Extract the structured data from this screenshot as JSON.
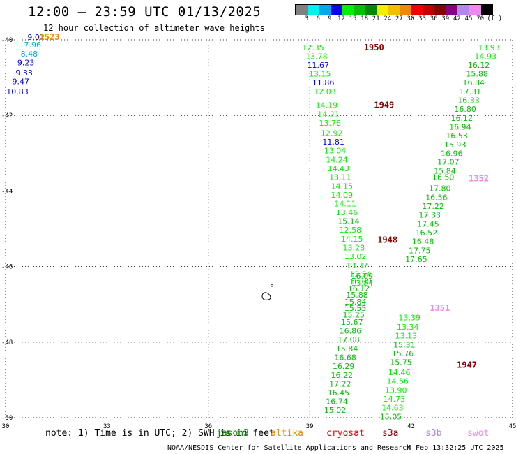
{
  "header": {
    "title": "12:00 — 23:59 UTC 01/13/2025",
    "subtitle": "12 hour collection of altimeter wave heights"
  },
  "legend": {
    "unit": "(ft)",
    "colors": [
      "#808080",
      "#00f0f0",
      "#00a8f0",
      "#0000f0",
      "#00f000",
      "#00c000",
      "#008800",
      "#f0f000",
      "#f0c000",
      "#f08800",
      "#f00000",
      "#c00000",
      "#880000",
      "#880088",
      "#b088f0",
      "#f088f0",
      "#000000"
    ],
    "labels": [
      "3",
      "6",
      "9",
      "12",
      "15",
      "18",
      "21",
      "24",
      "27",
      "30",
      "33",
      "36",
      "39",
      "42",
      "45",
      "70"
    ]
  },
  "axes": {
    "x_ticks": [
      "30",
      "33",
      "36",
      "39",
      "42",
      "45"
    ],
    "y_ticks": [
      "-40",
      "-42",
      "-44",
      "-46",
      "-48",
      "-50"
    ],
    "x_range": [
      30,
      45
    ],
    "y_range": [
      -40,
      -50
    ]
  },
  "tracks": [
    {
      "id": "1523",
      "label_color": "#f08800",
      "label_lon": 31.3,
      "label_lat": -39.93,
      "values": [
        {
          "v": "9.02",
          "lon": 30.9,
          "lat": -39.93,
          "c": "#0000f0"
        },
        {
          "v": "7.96",
          "lon": 30.8,
          "lat": -40.13,
          "c": "#00a8f0"
        },
        {
          "v": "8.48",
          "lon": 30.7,
          "lat": -40.37,
          "c": "#00a8f0"
        },
        {
          "v": "9.23",
          "lon": 30.6,
          "lat": -40.6,
          "c": "#0000f0"
        },
        {
          "v": "9.33",
          "lon": 30.55,
          "lat": -40.87,
          "c": "#0000f0"
        },
        {
          "v": "9.47",
          "lon": 30.45,
          "lat": -41.1,
          "c": "#0000f0"
        },
        {
          "v": "10.83",
          "lon": 30.35,
          "lat": -41.37,
          "c": "#0000f0"
        }
      ]
    },
    {
      "id": "1950",
      "label_color": "#880000",
      "label_lon": 40.9,
      "label_lat": -40.2,
      "values": [
        {
          "v": "12.35",
          "lon": 39.1,
          "lat": -40.2,
          "c": "#00f000"
        },
        {
          "v": "13.78",
          "lon": 39.2,
          "lat": -40.43,
          "c": "#00f000"
        },
        {
          "v": "11.67",
          "lon": 39.25,
          "lat": -40.67,
          "c": "#0000f0"
        },
        {
          "v": "13.15",
          "lon": 39.3,
          "lat": -40.9,
          "c": "#00f000"
        },
        {
          "v": "11.86",
          "lon": 39.4,
          "lat": -41.13,
          "c": "#0000f0"
        },
        {
          "v": "12.03",
          "lon": 39.45,
          "lat": -41.37,
          "c": "#00f000"
        }
      ]
    },
    {
      "id": "1949",
      "label_color": "#880000",
      "label_lon": 41.2,
      "label_lat": -41.73,
      "values": [
        {
          "v": "14.19",
          "lon": 39.5,
          "lat": -41.73,
          "c": "#00f000"
        },
        {
          "v": "14.21",
          "lon": 39.55,
          "lat": -41.97,
          "c": "#00f000"
        },
        {
          "v": "13.76",
          "lon": 39.6,
          "lat": -42.2,
          "c": "#00f000"
        },
        {
          "v": "12.92",
          "lon": 39.65,
          "lat": -42.47,
          "c": "#00f000"
        },
        {
          "v": "11.81",
          "lon": 39.7,
          "lat": -42.7,
          "c": "#0000f0"
        },
        {
          "v": "13.04",
          "lon": 39.75,
          "lat": -42.93,
          "c": "#00f000"
        },
        {
          "v": "14.24",
          "lon": 39.8,
          "lat": -43.17,
          "c": "#00f000"
        },
        {
          "v": "14.43",
          "lon": 39.85,
          "lat": -43.4,
          "c": "#00f000"
        },
        {
          "v": "13.11",
          "lon": 39.9,
          "lat": -43.63,
          "c": "#00f000"
        },
        {
          "v": "14.15",
          "lon": 39.95,
          "lat": -43.87,
          "c": "#00f000"
        },
        {
          "v": "14.09",
          "lon": 39.95,
          "lat": -44.1,
          "c": "#00f000"
        },
        {
          "v": "14.11",
          "lon": 40.05,
          "lat": -44.33,
          "c": "#00f000"
        },
        {
          "v": "13.46",
          "lon": 40.1,
          "lat": -44.57,
          "c": "#00f000"
        },
        {
          "v": "15.14",
          "lon": 40.15,
          "lat": -44.8,
          "c": "#00c000"
        },
        {
          "v": "12.58",
          "lon": 40.2,
          "lat": -45.03,
          "c": "#00f000"
        },
        {
          "v": "14.15",
          "lon": 40.25,
          "lat": -45.27,
          "c": "#00f000"
        },
        {
          "v": "13.28",
          "lon": 40.3,
          "lat": -45.5,
          "c": "#00f000"
        },
        {
          "v": "13.02",
          "lon": 40.35,
          "lat": -45.73,
          "c": "#00f000"
        },
        {
          "v": "13.37",
          "lon": 40.4,
          "lat": -45.97,
          "c": "#00f000"
        },
        {
          "v": "13.54",
          "lon": 40.5,
          "lat": -46.2,
          "c": "#00f000"
        },
        {
          "v": "13.84",
          "lon": 40.55,
          "lat": -46.43,
          "c": "#00f000"
        }
      ]
    },
    {
      "id": "1948",
      "label_color": "#880000",
      "label_lon": 41.3,
      "label_lat": -45.3,
      "values": [
        {
          "v": "16.09",
          "lon": 40.55,
          "lat": -46.25,
          "c": "#00c000"
        },
        {
          "v": "16.00",
          "lon": 40.5,
          "lat": -46.4,
          "c": "#00c000"
        },
        {
          "v": "16.12",
          "lon": 40.45,
          "lat": -46.58,
          "c": "#00c000"
        },
        {
          "v": "15.88",
          "lon": 40.4,
          "lat": -46.75,
          "c": "#00c000"
        },
        {
          "v": "15.84",
          "lon": 40.35,
          "lat": -46.93,
          "c": "#00c000"
        },
        {
          "v": "15.55",
          "lon": 40.35,
          "lat": -47.1,
          "c": "#00c000"
        },
        {
          "v": "15.25",
          "lon": 40.3,
          "lat": -47.27,
          "c": "#00c000"
        },
        {
          "v": "15.67",
          "lon": 40.25,
          "lat": -47.47,
          "c": "#00c000"
        },
        {
          "v": "16.86",
          "lon": 40.2,
          "lat": -47.7,
          "c": "#00c000"
        },
        {
          "v": "17.08",
          "lon": 40.15,
          "lat": -47.93,
          "c": "#00c000"
        },
        {
          "v": "15.84",
          "lon": 40.1,
          "lat": -48.17,
          "c": "#00c000"
        },
        {
          "v": "16.68",
          "lon": 40.05,
          "lat": -48.4,
          "c": "#00c000"
        },
        {
          "v": "16.29",
          "lon": 40.0,
          "lat": -48.63,
          "c": "#00c000"
        },
        {
          "v": "16.22",
          "lon": 39.95,
          "lat": -48.87,
          "c": "#00c000"
        },
        {
          "v": "17.22",
          "lon": 39.9,
          "lat": -49.1,
          "c": "#00c000"
        },
        {
          "v": "16.45",
          "lon": 39.85,
          "lat": -49.33,
          "c": "#00c000"
        },
        {
          "v": "16.74",
          "lon": 39.8,
          "lat": -49.57,
          "c": "#00c000"
        },
        {
          "v": "15.02",
          "lon": 39.75,
          "lat": -49.8,
          "c": "#00c000"
        }
      ]
    },
    {
      "id": "1352",
      "label_color": "#f088f0",
      "label_lon": 44.0,
      "label_lat": -43.67,
      "values": [
        {
          "v": "13.93",
          "lon": 44.3,
          "lat": -40.2,
          "c": "#00f000"
        },
        {
          "v": "14.93",
          "lon": 44.2,
          "lat": -40.43,
          "c": "#00f000"
        },
        {
          "v": "16.12",
          "lon": 44.0,
          "lat": -40.67,
          "c": "#00c000"
        },
        {
          "v": "15.88",
          "lon": 43.95,
          "lat": -40.9,
          "c": "#00c000"
        },
        {
          "v": "16.84",
          "lon": 43.85,
          "lat": -41.13,
          "c": "#00c000"
        },
        {
          "v": "17.31",
          "lon": 43.75,
          "lat": -41.37,
          "c": "#00c000"
        },
        {
          "v": "16.33",
          "lon": 43.7,
          "lat": -41.6,
          "c": "#00c000"
        },
        {
          "v": "16.80",
          "lon": 43.6,
          "lat": -41.83,
          "c": "#00c000"
        },
        {
          "v": "16.12",
          "lon": 43.5,
          "lat": -42.07,
          "c": "#00c000"
        },
        {
          "v": "16.94",
          "lon": 43.45,
          "lat": -42.3,
          "c": "#00c000"
        },
        {
          "v": "16.53",
          "lon": 43.35,
          "lat": -42.53,
          "c": "#00c000"
        },
        {
          "v": "15.93",
          "lon": 43.3,
          "lat": -42.77,
          "c": "#00c000"
        },
        {
          "v": "16.96",
          "lon": 43.2,
          "lat": -43.0,
          "c": "#00c000"
        },
        {
          "v": "17.07",
          "lon": 43.1,
          "lat": -43.23,
          "c": "#00c000"
        },
        {
          "v": "15.84",
          "lon": 43.0,
          "lat": -43.47,
          "c": "#00c000"
        },
        {
          "v": "16.50",
          "lon": 42.95,
          "lat": -43.63,
          "c": "#00c000"
        },
        {
          "v": "17.80",
          "lon": 42.85,
          "lat": -43.93,
          "c": "#00c000"
        },
        {
          "v": "16.56",
          "lon": 42.75,
          "lat": -44.17,
          "c": "#00c000"
        },
        {
          "v": "17.22",
          "lon": 42.65,
          "lat": -44.4,
          "c": "#00c000"
        },
        {
          "v": "17.33",
          "lon": 42.55,
          "lat": -44.63,
          "c": "#00c000"
        },
        {
          "v": "17.45",
          "lon": 42.5,
          "lat": -44.87,
          "c": "#00c000"
        },
        {
          "v": "16.52",
          "lon": 42.45,
          "lat": -45.1,
          "c": "#00c000"
        },
        {
          "v": "16.48",
          "lon": 42.35,
          "lat": -45.33,
          "c": "#00c000"
        },
        {
          "v": "17.75",
          "lon": 42.25,
          "lat": -45.57,
          "c": "#00c000"
        },
        {
          "v": "17.65",
          "lon": 42.15,
          "lat": -45.8,
          "c": "#00c000"
        }
      ]
    },
    {
      "id": "1351",
      "label_color": "#f088f0",
      "label_lon": 42.85,
      "label_lat": -47.1,
      "values": [
        {
          "v": "13.39",
          "lon": 41.95,
          "lat": -47.35,
          "c": "#00f000"
        },
        {
          "v": "13.34",
          "lon": 41.9,
          "lat": -47.6,
          "c": "#00f000"
        },
        {
          "v": "13.13",
          "lon": 41.85,
          "lat": -47.83,
          "c": "#00f000"
        },
        {
          "v": "15.31",
          "lon": 41.8,
          "lat": -48.07,
          "c": "#00c000"
        },
        {
          "v": "15.76",
          "lon": 41.75,
          "lat": -48.3,
          "c": "#00c000"
        },
        {
          "v": "15.75",
          "lon": 41.7,
          "lat": -48.53,
          "c": "#00c000"
        }
      ]
    },
    {
      "id": "1947",
      "label_color": "#880000",
      "label_lon": 43.65,
      "label_lat": -48.6,
      "values": [
        {
          "v": "14.46",
          "lon": 41.65,
          "lat": -48.8,
          "c": "#00f000"
        },
        {
          "v": "14.56",
          "lon": 41.6,
          "lat": -49.03,
          "c": "#00f000"
        },
        {
          "v": "13.90",
          "lon": 41.55,
          "lat": -49.27,
          "c": "#00f000"
        },
        {
          "v": "14.73",
          "lon": 41.5,
          "lat": -49.5,
          "c": "#00f000"
        },
        {
          "v": "14.63",
          "lon": 41.45,
          "lat": -49.73,
          "c": "#00f000"
        },
        {
          "v": "15.05",
          "lon": 41.4,
          "lat": -49.97,
          "c": "#00c000"
        }
      ]
    }
  ],
  "note": "note: 1) Time is in UTC; 2) SWH is in feet",
  "sources": [
    {
      "name": "jason3",
      "color": "#008800"
    },
    {
      "name": "altika",
      "color": "#f08800"
    },
    {
      "name": "cryosat",
      "color": "#f00000"
    },
    {
      "name": "s3a",
      "color": "#880000"
    },
    {
      "name": "s3b",
      "color": "#b088f0"
    },
    {
      "name": "swot",
      "color": "#f088f0"
    }
  ],
  "footer": {
    "credit": "NOAA/NESDIS Center for Satellite Applications and Research",
    "timestamp": "4 Feb 13:32:25 UTC 2025"
  }
}
